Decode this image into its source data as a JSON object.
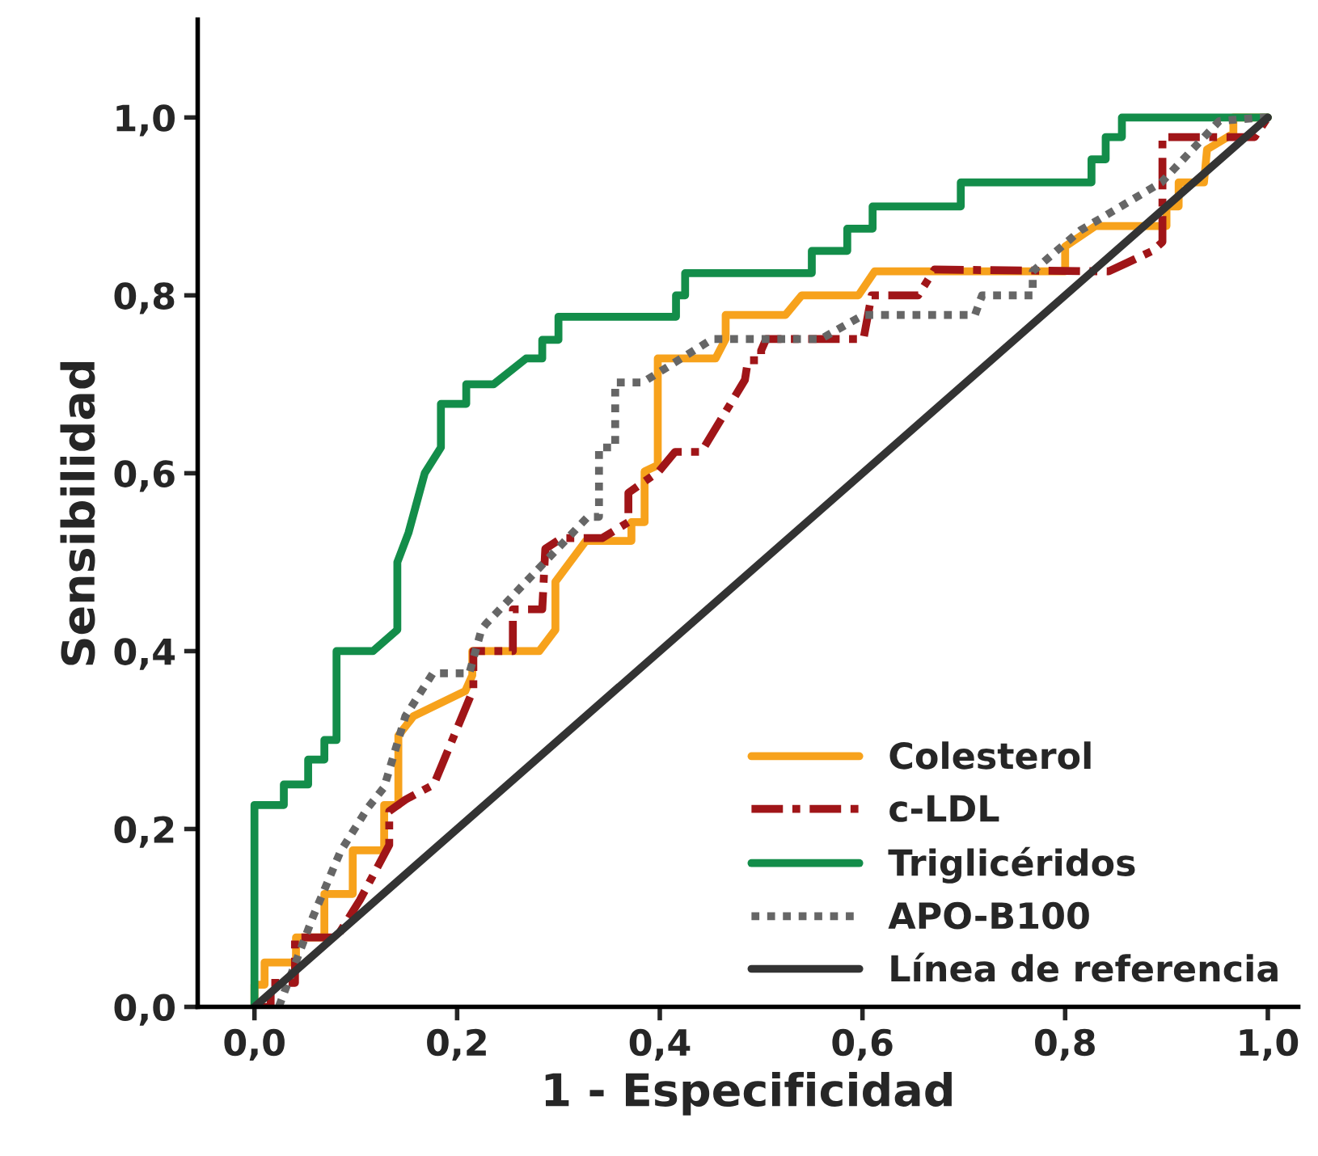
{
  "chart_data": {
    "type": "line",
    "xlabel": "1 - Especificidad",
    "ylabel": "Sensibilidad",
    "xlim": [
      -0.056,
      1.03
    ],
    "ylim": [
      0,
      1.11
    ],
    "xticks": [
      {
        "value": 0,
        "label": "0,0"
      },
      {
        "value": 0.2,
        "label": "0,2"
      },
      {
        "value": 0.4,
        "label": "0,4"
      },
      {
        "value": 0.6,
        "label": "0,6"
      },
      {
        "value": 0.8,
        "label": "0,8"
      },
      {
        "value": 1,
        "label": "1,0"
      }
    ],
    "yticks": [
      {
        "value": 0,
        "label": "0,0"
      },
      {
        "value": 0.2,
        "label": "0,2"
      },
      {
        "value": 0.4,
        "label": "0,4"
      },
      {
        "value": 0.6,
        "label": "0,6"
      },
      {
        "value": 0.8,
        "label": "0,8"
      },
      {
        "value": 1,
        "label": "1,0"
      }
    ],
    "grid": false,
    "legend": "bottom right",
    "marker": "none",
    "series": [
      {
        "name": "Colesterol",
        "color": "#f7a21c",
        "line_style": "solid",
        "x": [
          0,
          0,
          0.01,
          0.01,
          0.041,
          0.041,
          0.069,
          0.069,
          0.097,
          0.097,
          0.128,
          0.128,
          0.142,
          0.142,
          0.157,
          0.208,
          0.215,
          0.215,
          0.281,
          0.297,
          0.297,
          0.327,
          0.372,
          0.372,
          0.385,
          0.385,
          0.398,
          0.398,
          0.455,
          0.465,
          0.465,
          0.524,
          0.54,
          0.596,
          0.612,
          0.8,
          0.8,
          0.83,
          0.9,
          0.9,
          0.912,
          0.912,
          0.937,
          0.94,
          0.966,
          0.966,
          1
        ],
        "values": [
          0,
          0.025,
          0.025,
          0.05,
          0.05,
          0.078,
          0.078,
          0.127,
          0.127,
          0.176,
          0.176,
          0.227,
          0.227,
          0.305,
          0.327,
          0.355,
          0.373,
          0.4,
          0.4,
          0.424,
          0.478,
          0.524,
          0.524,
          0.545,
          0.545,
          0.602,
          0.609,
          0.729,
          0.729,
          0.751,
          0.778,
          0.778,
          0.8,
          0.8,
          0.827,
          0.827,
          0.855,
          0.878,
          0.878,
          0.9,
          0.9,
          0.927,
          0.927,
          0.964,
          0.982,
          1,
          1
        ]
      },
      {
        "name": "c-LDL",
        "color": "#a01518",
        "line_style": "dashdot",
        "x": [
          0,
          0.016,
          0.016,
          0.04,
          0.04,
          0.081,
          0.104,
          0.133,
          0.133,
          0.149,
          0.177,
          0.185,
          0.216,
          0.216,
          0.255,
          0.255,
          0.284,
          0.287,
          0.303,
          0.343,
          0.369,
          0.369,
          0.399,
          0.415,
          0.441,
          0.484,
          0.487,
          0.5,
          0.5,
          0.505,
          0.601,
          0.609,
          0.655,
          0.671,
          0.843,
          0.86,
          0.886,
          0.896,
          0.896,
          0.987,
          1
        ],
        "values": [
          0,
          0,
          0.027,
          0.027,
          0.078,
          0.078,
          0.12,
          0.182,
          0.22,
          0.233,
          0.25,
          0.272,
          0.357,
          0.4,
          0.4,
          0.447,
          0.447,
          0.515,
          0.527,
          0.527,
          0.545,
          0.578,
          0.602,
          0.624,
          0.624,
          0.705,
          0.727,
          0.727,
          0.738,
          0.751,
          0.751,
          0.8,
          0.8,
          0.829,
          0.827,
          0.836,
          0.85,
          0.86,
          0.978,
          0.978,
          1
        ]
      },
      {
        "name": "Triglicéridos",
        "color": "#138d4a",
        "line_style": "solid",
        "x": [
          0,
          0,
          0.029,
          0.029,
          0.053,
          0.053,
          0.069,
          0.069,
          0.081,
          0.081,
          0.117,
          0.141,
          0.141,
          0.152,
          0.168,
          0.184,
          0.184,
          0.209,
          0.209,
          0.236,
          0.268,
          0.284,
          0.284,
          0.3,
          0.3,
          0.416,
          0.416,
          0.425,
          0.425,
          0.55,
          0.55,
          0.585,
          0.585,
          0.61,
          0.61,
          0.697,
          0.697,
          0.826,
          0.826,
          0.84,
          0.84,
          0.856,
          0.856,
          1
        ],
        "values": [
          0,
          0.227,
          0.227,
          0.25,
          0.25,
          0.278,
          0.278,
          0.3,
          0.3,
          0.4,
          0.4,
          0.424,
          0.5,
          0.533,
          0.6,
          0.629,
          0.678,
          0.678,
          0.7,
          0.7,
          0.729,
          0.729,
          0.75,
          0.75,
          0.776,
          0.776,
          0.8,
          0.8,
          0.825,
          0.825,
          0.85,
          0.85,
          0.875,
          0.875,
          0.9,
          0.9,
          0.927,
          0.927,
          0.953,
          0.953,
          0.978,
          0.978,
          1,
          1
        ]
      },
      {
        "name": "APO-B100",
        "color": "#666666",
        "line_style": "dotted",
        "x": [
          0.024,
          0.058,
          0.085,
          0.112,
          0.128,
          0.149,
          0.176,
          0.212,
          0.224,
          0.228,
          0.329,
          0.34,
          0.34,
          0.356,
          0.356,
          0.383,
          0.452,
          0.559,
          0.601,
          0.711,
          0.718,
          0.768,
          0.768,
          0.815,
          0.895,
          0.952,
          0.995,
          1
        ],
        "values": [
          0,
          0.102,
          0.175,
          0.224,
          0.247,
          0.327,
          0.375,
          0.375,
          0.424,
          0.43,
          0.551,
          0.551,
          0.629,
          0.629,
          0.702,
          0.702,
          0.751,
          0.751,
          0.778,
          0.778,
          0.8,
          0.8,
          0.827,
          0.873,
          0.927,
          0.996,
          1,
          1
        ]
      },
      {
        "name": "Línea de referencia",
        "color": "#333333",
        "line_style": "solid",
        "x": [
          0,
          1
        ],
        "values": [
          0,
          1
        ]
      }
    ]
  }
}
